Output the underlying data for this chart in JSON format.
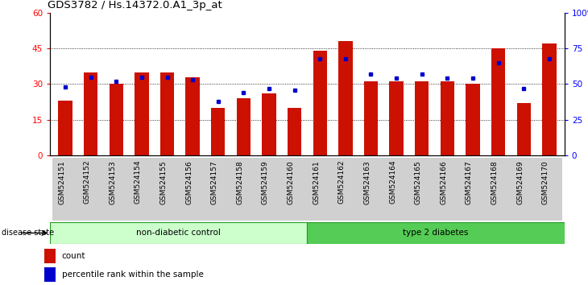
{
  "title": "GDS3782 / Hs.14372.0.A1_3p_at",
  "samples": [
    "GSM524151",
    "GSM524152",
    "GSM524153",
    "GSM524154",
    "GSM524155",
    "GSM524156",
    "GSM524157",
    "GSM524158",
    "GSM524159",
    "GSM524160",
    "GSM524161",
    "GSM524162",
    "GSM524163",
    "GSM524164",
    "GSM524165",
    "GSM524166",
    "GSM524167",
    "GSM524168",
    "GSM524169",
    "GSM524170"
  ],
  "counts": [
    23,
    35,
    30,
    35,
    35,
    33,
    20,
    24,
    26,
    20,
    44,
    48,
    31,
    31,
    31,
    31,
    30,
    45,
    22,
    47
  ],
  "percentiles": [
    48,
    55,
    52,
    55,
    55,
    53,
    38,
    44,
    47,
    46,
    68,
    68,
    57,
    54,
    57,
    54,
    54,
    65,
    47,
    68
  ],
  "non_diabetic_count": 10,
  "type2_count": 10,
  "ylim_left": [
    0,
    60
  ],
  "ylim_right": [
    0,
    100
  ],
  "yticks_left": [
    0,
    15,
    30,
    45,
    60
  ],
  "yticks_right": [
    0,
    25,
    50,
    75,
    100
  ],
  "bar_color": "#cc1100",
  "dot_color": "#0000cc",
  "non_diabetic_color": "#ccffcc",
  "type2_color": "#55cc55",
  "group_border_color": "#229922",
  "label_fontsize": 6.5,
  "title_fontsize": 9.5,
  "legend_fontsize": 7.5,
  "non_diabetic_label": "non-diabetic control",
  "type2_label": "type 2 diabetes",
  "disease_state_label": "disease state",
  "count_legend": "count",
  "percentile_legend": "percentile rank within the sample"
}
